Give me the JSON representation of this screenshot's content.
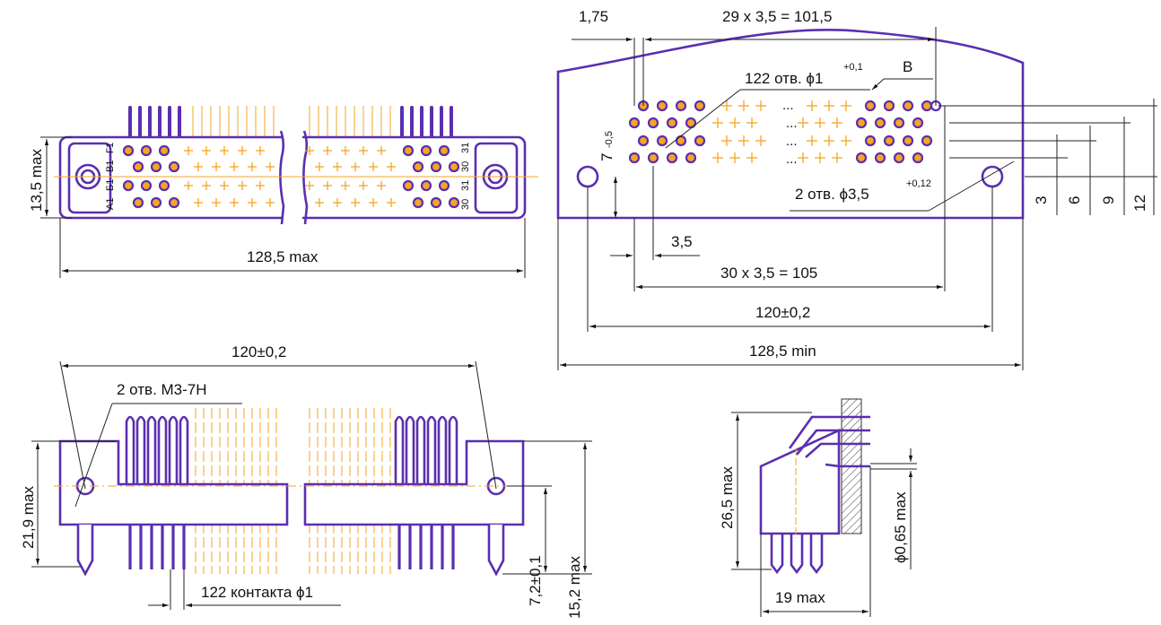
{
  "front_view": {
    "height_dim": "13,5 max",
    "width_dim": "128,5 max",
    "row_labels_left": [
      "Г1",
      "В1",
      "Б1",
      "А1"
    ],
    "row_labels_right": [
      "31",
      "30",
      "31",
      "30"
    ]
  },
  "panel_cutout": {
    "pitch_dim": "29 x 3,5 = 101,5",
    "offset_dim": "1,75",
    "holes_label": "122 отв. ϕ1",
    "holes_tol": "+0,1",
    "detail_label": "В",
    "height_dim": "7",
    "height_tol": "-0,5",
    "mount_holes_label": "2 отв. ϕ3,5",
    "mount_holes_tol": "+0,12",
    "pitch_small": "3,5",
    "span_dim": "30 x 3,5 = 105",
    "mount_dist": "120±0,2",
    "overall_min": "128,5 min",
    "row_dims": [
      "3",
      "6",
      "9",
      "12"
    ],
    "ellipsis": "..."
  },
  "side_view": {
    "mount_dist": "120±0,2",
    "thread_label": "2 отв. М3-7Н",
    "height_dim": "21,9 max",
    "contacts_label": "122 контакта ϕ1",
    "pin_pos_dim": "7,2±0,1",
    "pin_len_dim": "15,2 max"
  },
  "end_view": {
    "height_dim": "26,5 max",
    "depth_dim": "19 max",
    "pin_dia_dim": "ϕ0,65 max"
  },
  "colors": {
    "outline": "#5a2fb0",
    "contact": "#f5a623",
    "dimension": "#111111"
  }
}
